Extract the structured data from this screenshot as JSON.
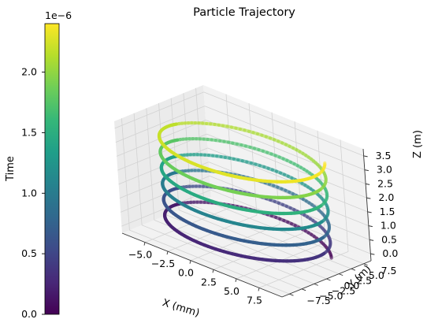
{
  "chart_data": {
    "type": "line3d",
    "title": "Particle Trajectory",
    "xlabel": "X (mm)",
    "ylabel": "Y (m)",
    "zlabel": "Z (m)",
    "xlim": [
      -7.5,
      10
    ],
    "ylim": [
      -9,
      9
    ],
    "zlim": [
      -0.25,
      3.75
    ],
    "x_ticks": [
      -5,
      -2.5,
      0,
      2.5,
      5,
      7.5
    ],
    "x_tick_labels": [
      "−5.0",
      "−2.5",
      "0.0",
      "2.5",
      "5.0",
      "7.5"
    ],
    "y_ticks": [
      -7.5,
      -5,
      -2.5,
      0,
      2.5,
      5,
      7.5
    ],
    "y_tick_labels": [
      "−7.5",
      "−5.0",
      "−2.5",
      "0.0",
      "2.5",
      "5.0",
      "7.5"
    ],
    "z_ticks": [
      0,
      0.5,
      1,
      1.5,
      2,
      2.5,
      3,
      3.5
    ],
    "z_tick_labels": [
      "0.0",
      "0.5",
      "1.0",
      "1.5",
      "2.0",
      "2.5",
      "3.0",
      "3.5"
    ],
    "grid": true,
    "colormap": "viridis",
    "helix": {
      "center_x": 1.5,
      "center_y": 0,
      "radius": 8,
      "turns": 6,
      "z_start": 0,
      "z_end": 3.4,
      "start_phase_deg": 30
    },
    "colorbar": {
      "label": "Time",
      "offset_text": "1e−6",
      "min": 0,
      "max": 2.4e-06,
      "ticks": [
        0,
        0.5,
        1.0,
        1.5,
        2.0
      ],
      "tick_labels": [
        "0.0",
        "0.5",
        "1.0",
        "1.5",
        "2.0"
      ],
      "position": "left"
    }
  }
}
